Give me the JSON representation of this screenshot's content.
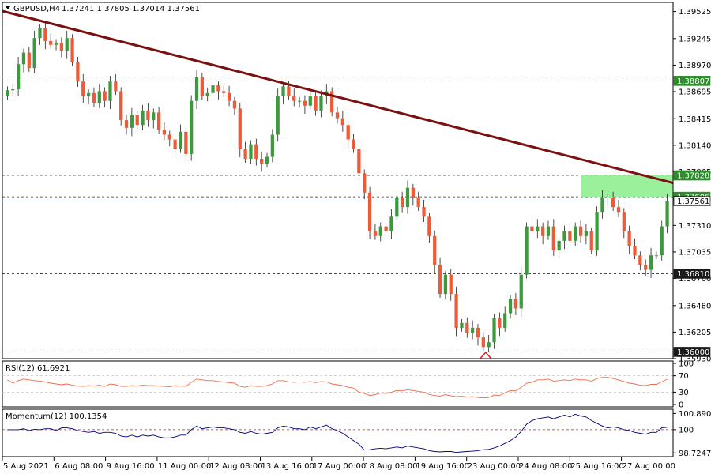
{
  "header": {
    "symbol": "GBPUSD,H4",
    "ohlc": "1.37241 1.37805 1.37014 1.37561"
  },
  "colors": {
    "bull": "#3c9a3c",
    "bear": "#ee5a38",
    "trendline": "#7a1010",
    "zone": "#90ee90",
    "level_tag": "#2e8b2e",
    "grid": "#c0c0c0",
    "rsi_line": "#ee6a4a",
    "momentum_line": "#000080",
    "momentum_ref": "#ff0000"
  },
  "price_axis": {
    "ticks": [
      "1.39525",
      "1.39245",
      "1.38970",
      "1.38695",
      "1.38415",
      "1.38140",
      "1.37865",
      "1.37310",
      "1.37035",
      "1.36760",
      "1.36480",
      "1.36205",
      "1.35930"
    ],
    "tags": [
      {
        "label": "1.38807",
        "value": 1.38807,
        "style": "green"
      },
      {
        "label": "1.37828",
        "value": 1.37828,
        "style": "green"
      },
      {
        "label": "1.37606",
        "value": 1.37606,
        "style": "green"
      },
      {
        "label": "1.37561",
        "value": 1.37561,
        "style": "current"
      },
      {
        "label": "1.36810",
        "value": 1.3681,
        "style": "dark"
      },
      {
        "label": "1.36000",
        "value": 1.36,
        "style": "dark"
      }
    ]
  },
  "time_axis": [
    "5 Aug 2021",
    "6 Aug 08:00",
    "9 Aug 16:00",
    "11 Aug 00:00",
    "12 Aug 08:00",
    "13 Aug 16:00",
    "17 Aug 00:00",
    "18 Aug 08:00",
    "19 Aug 16:00",
    "23 Aug 00:00",
    "24 Aug 08:00",
    "25 Aug 16:00",
    "27 Aug 00:00"
  ],
  "rsi": {
    "label": "RSI(12) 61.6921",
    "ticks": [
      "100",
      "70",
      "30",
      "0"
    ]
  },
  "momentum": {
    "label": "Momentum(12) 100.1354",
    "ticks": [
      "100.8901",
      "100",
      "98.7247"
    ]
  },
  "chart_data": {
    "type": "candlestick",
    "ylim": [
      1.3593,
      1.3962
    ],
    "horizontal_levels": [
      1.38807,
      1.37828,
      1.37606,
      1.3681,
      1.36
    ],
    "supply_zone": [
      1.37606,
      1.37828
    ],
    "trendline": {
      "from": 1.3953,
      "to": 1.3775
    },
    "close": [
      1.3871,
      1.3872,
      1.3898,
      1.391,
      1.3894,
      1.3925,
      1.3935,
      1.3922,
      1.3918,
      1.392,
      1.3912,
      1.3925,
      1.39,
      1.388,
      1.3865,
      1.3868,
      1.3858,
      1.387,
      1.386,
      1.388,
      1.387,
      1.384,
      1.3832,
      1.3845,
      1.3835,
      1.385,
      1.384,
      1.3848,
      1.383,
      1.3825,
      1.382,
      1.381,
      1.3828,
      1.3805,
      1.386,
      1.3885,
      1.3865,
      1.3868,
      1.3876,
      1.387,
      1.3868,
      1.386,
      1.3852,
      1.381,
      1.38,
      1.3815,
      1.38,
      1.3795,
      1.3802,
      1.3825,
      1.3865,
      1.3875,
      1.3865,
      1.386,
      1.386,
      1.3855,
      1.3865,
      1.385,
      1.3865,
      1.387,
      1.3848,
      1.3842,
      1.3835,
      1.382,
      1.381,
      1.3785,
      1.3765,
      1.3725,
      1.372,
      1.373,
      1.3725,
      1.374,
      1.376,
      1.375,
      1.377,
      1.376,
      1.375,
      1.374,
      1.372,
      1.369,
      1.366,
      1.368,
      1.366,
      1.3625,
      1.363,
      1.362,
      1.3625,
      1.3615,
      1.3605,
      1.361,
      1.3635,
      1.3625,
      1.364,
      1.3655,
      1.3645,
      1.368,
      1.373,
      1.3725,
      1.373,
      1.372,
      1.373,
      1.3705,
      1.3715,
      1.3725,
      1.3715,
      1.373,
      1.372,
      1.3725,
      1.3705,
      1.3745,
      1.376,
      1.376,
      1.375,
      1.3745,
      1.3725,
      1.371,
      1.37,
      1.369,
      1.3685,
      1.37,
      1.37,
      1.373,
      1.37561
    ],
    "rsi_values": [
      60,
      52,
      58,
      62,
      60,
      58,
      57,
      55,
      52,
      50,
      48,
      50,
      47,
      45,
      44,
      46,
      45,
      47,
      44,
      50,
      48,
      44,
      44,
      46,
      45,
      47,
      46,
      46,
      45,
      44,
      43,
      46,
      45,
      44,
      54,
      62,
      60,
      58,
      58,
      56,
      55,
      53,
      52,
      44,
      42,
      46,
      44,
      44,
      46,
      50,
      58,
      58,
      55,
      54,
      55,
      54,
      56,
      53,
      56,
      55,
      50,
      48,
      46,
      42,
      40,
      30,
      27,
      22,
      24,
      28,
      27,
      30,
      34,
      33,
      36,
      34,
      32,
      30,
      24,
      22,
      20,
      24,
      21,
      19,
      20,
      18,
      19,
      17,
      16,
      17,
      23,
      22,
      28,
      34,
      33,
      42,
      52,
      54,
      60,
      60,
      62,
      57,
      58,
      60,
      58,
      62,
      60,
      60,
      57,
      63,
      66,
      66,
      63,
      60,
      56,
      52,
      50,
      47,
      46,
      49,
      49,
      55,
      61.6921
    ],
    "momentum_values": [
      100.0,
      100.0,
      100.0,
      100.05,
      99.95,
      100.02,
      100.0,
      100.05,
      100.05,
      99.95,
      100.1,
      100.1,
      100.05,
      99.95,
      99.9,
      99.85,
      99.9,
      99.8,
      99.85,
      99.85,
      99.8,
      99.65,
      99.6,
      99.7,
      99.6,
      99.7,
      99.65,
      99.7,
      99.6,
      99.55,
      99.55,
      99.6,
      99.7,
      99.7,
      100.0,
      100.2,
      100.05,
      100.1,
      100.15,
      100.1,
      100.1,
      100.05,
      100.0,
      99.85,
      99.8,
      99.9,
      99.8,
      99.75,
      99.8,
      99.85,
      100.1,
      100.2,
      100.15,
      100.05,
      100.05,
      100.0,
      100.15,
      100.05,
      100.15,
      100.25,
      100.05,
      99.95,
      99.8,
      99.6,
      99.4,
      99.2,
      98.88,
      98.9,
      98.95,
      98.98,
      98.95,
      99.0,
      99.05,
      99.0,
      99.1,
      99.05,
      99.0,
      98.95,
      98.85,
      98.8,
      98.78,
      98.8,
      98.8,
      98.75,
      98.78,
      98.8,
      98.82,
      98.85,
      98.9,
      98.92,
      99.0,
      99.1,
      99.25,
      99.4,
      99.6,
      99.9,
      100.3,
      100.5,
      100.6,
      100.65,
      100.7,
      100.6,
      100.7,
      100.8,
      100.7,
      100.85,
      100.75,
      100.7,
      100.5,
      100.35,
      100.2,
      100.1,
      100.15,
      100.1,
      100.0,
      99.95,
      99.85,
      99.8,
      99.75,
      99.85,
      99.85,
      100.1,
      100.1354
    ]
  }
}
